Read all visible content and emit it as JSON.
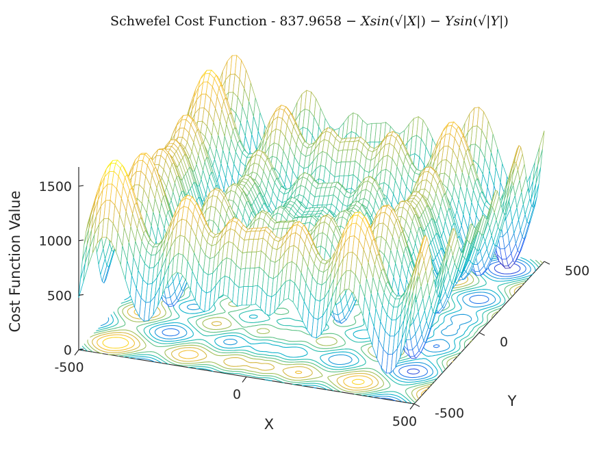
{
  "chart_data": {
    "type": "mesh_surface_with_contour",
    "title_parts": {
      "prefix": "Schwefel Cost Function - 837.9658 ",
      "term1_var": "X",
      "term1_fn": "sin",
      "term1_arg": "|X|",
      "term2_var": "Y",
      "term2_fn": "sin",
      "term2_arg": "|Y|"
    },
    "function": "837.9658 - X*sin(sqrt(|X|)) - Y*sin(sqrt(|Y|))",
    "xlabel": "X",
    "ylabel": "Y",
    "zlabel": "Cost Function Value",
    "xlim": [
      -500,
      500
    ],
    "ylim": [
      -500,
      500
    ],
    "zlim": [
      0,
      1676
    ],
    "x_ticks": [
      "-500",
      "0",
      "500"
    ],
    "y_ticks": [
      "-500",
      "0",
      "500"
    ],
    "z_ticks": [
      "0",
      "500",
      "1000",
      "1500"
    ],
    "x_tick_values": [
      -500,
      0,
      500
    ],
    "y_tick_values": [
      -500,
      0,
      500
    ],
    "z_tick_values": [
      0,
      500,
      1000,
      1500
    ],
    "mesh_resolution": 72,
    "contour_levels": 10,
    "colormap": "parula",
    "colormap_stops": [
      "#3e26a8",
      "#2d62f6",
      "#1d92de",
      "#07b4c9",
      "#33c09a",
      "#9bbf5a",
      "#e2b53a",
      "#fdc82f",
      "#f9fb15"
    ],
    "grid": false
  }
}
